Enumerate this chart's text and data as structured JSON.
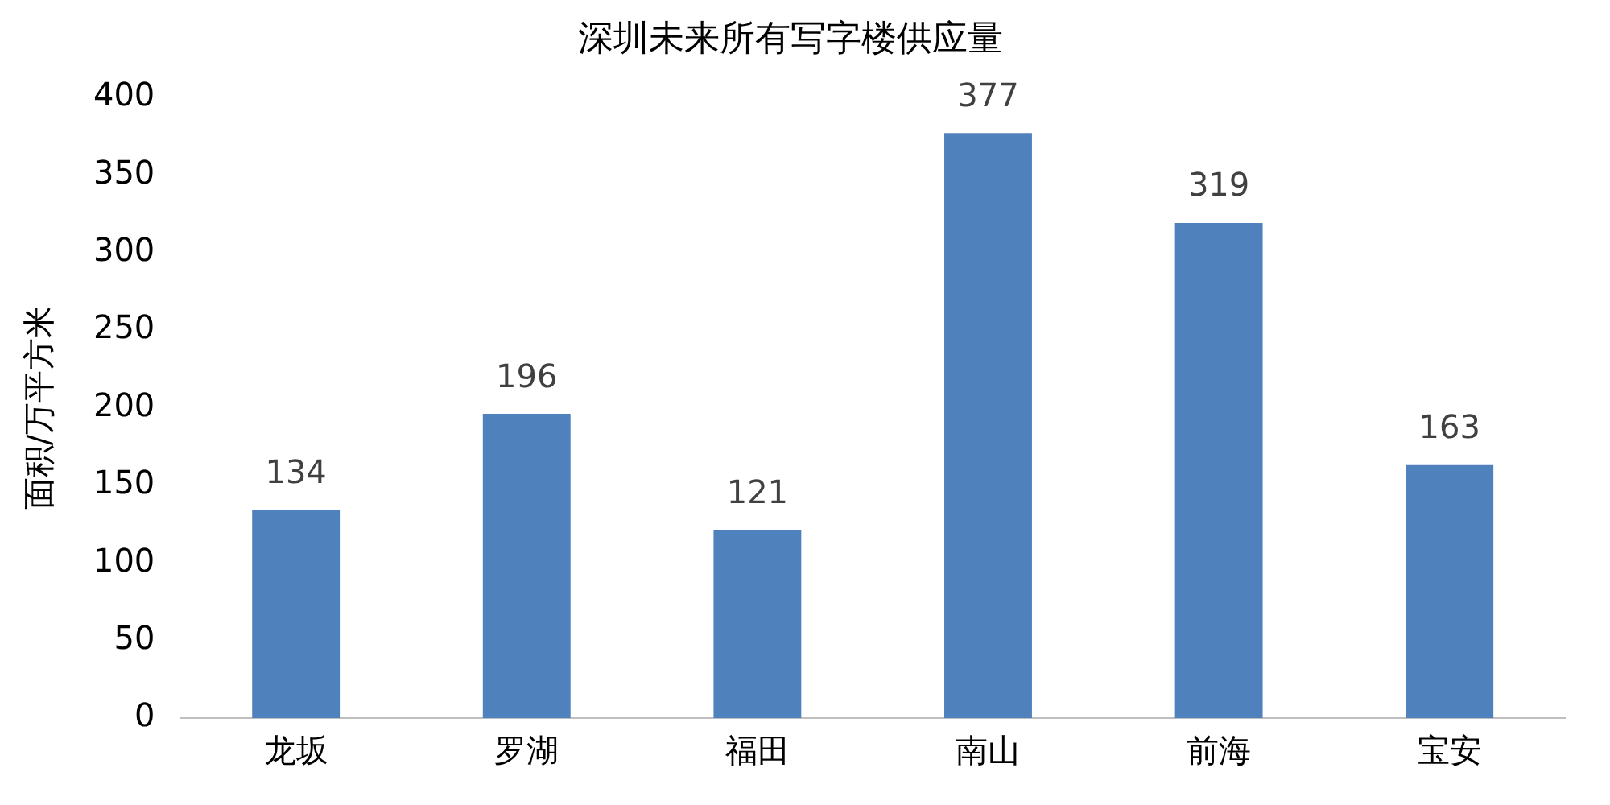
{
  "chart_data": {
    "type": "bar",
    "title": "深圳未来所有写字楼供应量",
    "ylabel": "面积/万平方米",
    "categories": [
      "龙坂",
      "罗湖",
      "福田",
      "南山",
      "前海",
      "宝安"
    ],
    "values": [
      134,
      196,
      121,
      377,
      319,
      163
    ],
    "color": "#4f81bd",
    "ylim": [
      0,
      400
    ],
    "yticks": [
      0,
      50,
      100,
      150,
      200,
      250,
      300,
      350,
      400
    ],
    "grid": false,
    "legend": false,
    "data_labels": true
  }
}
